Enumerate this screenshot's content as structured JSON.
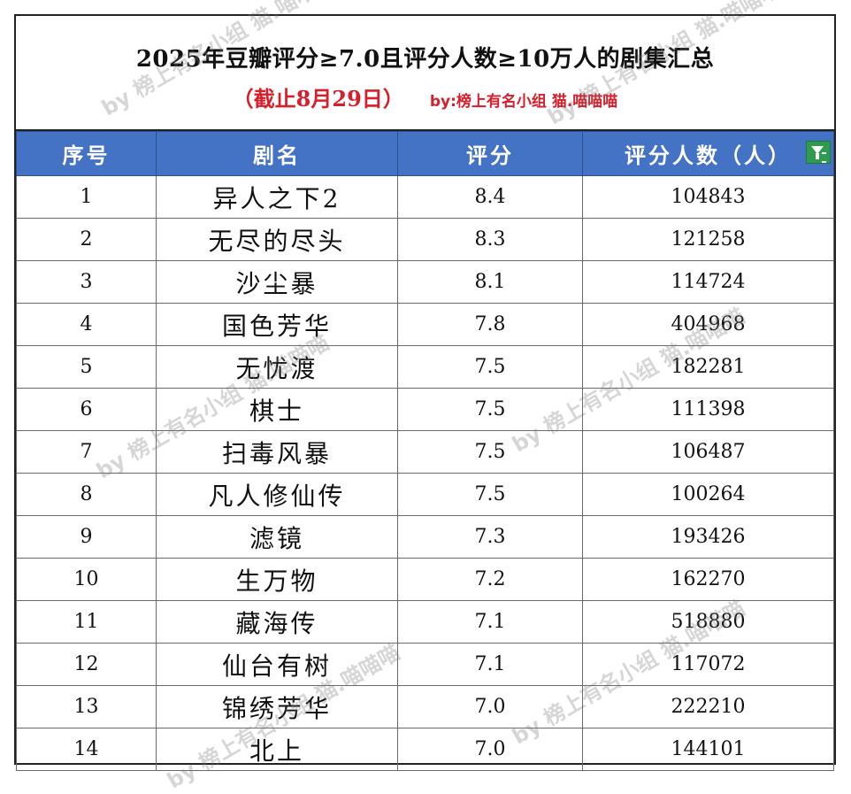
{
  "title": "2025年豆瓣评分≥7.0且评分人数≥10万人的剧集汇总",
  "subtitle": "（截止8月29日）",
  "byline": "by:榜上有名小组 猫.喵喵喵",
  "watermark": "by 榜上有名小组 猫.喵喵喵",
  "headers": {
    "index": "序号",
    "name": "剧名",
    "score": "评分",
    "count": "评分人数（人）"
  },
  "rows": [
    {
      "index": "1",
      "name": "异人之下2",
      "score": "8.4",
      "count": "104843"
    },
    {
      "index": "2",
      "name": "无尽的尽头",
      "score": "8.3",
      "count": "121258"
    },
    {
      "index": "3",
      "name": "沙尘暴",
      "score": "8.1",
      "count": "114724"
    },
    {
      "index": "4",
      "name": "国色芳华",
      "score": "7.8",
      "count": "404968"
    },
    {
      "index": "5",
      "name": "无忧渡",
      "score": "7.5",
      "count": "182281"
    },
    {
      "index": "6",
      "name": "棋士",
      "score": "7.5",
      "count": "111398"
    },
    {
      "index": "7",
      "name": "扫毒风暴",
      "score": "7.5",
      "count": "106487"
    },
    {
      "index": "8",
      "name": "凡人修仙传",
      "score": "7.5",
      "count": "100264"
    },
    {
      "index": "9",
      "name": "滤镜",
      "score": "7.3",
      "count": "193426"
    },
    {
      "index": "10",
      "name": "生万物",
      "score": "7.2",
      "count": "162270"
    },
    {
      "index": "11",
      "name": "藏海传",
      "score": "7.1",
      "count": "518880"
    },
    {
      "index": "12",
      "name": "仙台有树",
      "score": "7.1",
      "count": "117072"
    },
    {
      "index": "13",
      "name": "锦绣芳华",
      "score": "7.0",
      "count": "222210"
    },
    {
      "index": "14",
      "name": "北上",
      "score": "7.0",
      "count": "144101"
    }
  ]
}
